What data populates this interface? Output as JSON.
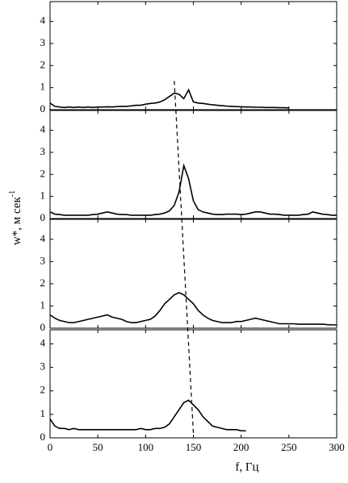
{
  "chart_data": {
    "type": "line",
    "x_label": "f, Гц",
    "y_label": "w*, м сек",
    "y_label_sup": "-1",
    "xlim": [
      0,
      300
    ],
    "xticks": [
      0,
      50,
      100,
      150,
      200,
      250,
      300
    ],
    "color": "#000000",
    "guide_line": {
      "x": [
        130,
        150
      ],
      "y": [
        1.3,
        0.2
      ]
    },
    "panels": [
      {
        "ylim": [
          0,
          4.9
        ],
        "yticks": [
          0,
          1,
          2,
          3,
          4
        ],
        "x": [
          0,
          5,
          10,
          15,
          20,
          25,
          30,
          35,
          40,
          45,
          50,
          55,
          60,
          65,
          70,
          75,
          80,
          85,
          90,
          95,
          100,
          105,
          110,
          115,
          120,
          125,
          130,
          135,
          140,
          145,
          150,
          155,
          160,
          165,
          170,
          175,
          180,
          185,
          190,
          195,
          200,
          205,
          210,
          215,
          220,
          225,
          230,
          235,
          240,
          245,
          250
        ],
        "values": [
          0.3,
          0.15,
          0.12,
          0.1,
          0.12,
          0.1,
          0.12,
          0.1,
          0.12,
          0.1,
          0.12,
          0.12,
          0.13,
          0.12,
          0.14,
          0.15,
          0.15,
          0.17,
          0.2,
          0.2,
          0.25,
          0.28,
          0.3,
          0.35,
          0.45,
          0.6,
          0.75,
          0.7,
          0.5,
          0.9,
          0.35,
          0.3,
          0.28,
          0.25,
          0.22,
          0.2,
          0.18,
          0.16,
          0.15,
          0.14,
          0.13,
          0.12,
          0.12,
          0.11,
          0.11,
          0.1,
          0.1,
          0.1,
          0.09,
          0.09,
          0.08
        ]
      },
      {
        "ylim": [
          0,
          4.9
        ],
        "yticks": [
          0,
          1,
          2,
          3,
          4
        ],
        "x": [
          0,
          5,
          10,
          15,
          20,
          25,
          30,
          35,
          40,
          45,
          50,
          55,
          60,
          65,
          70,
          75,
          80,
          85,
          90,
          95,
          100,
          105,
          110,
          115,
          120,
          125,
          130,
          135,
          140,
          145,
          150,
          155,
          160,
          165,
          170,
          175,
          180,
          185,
          190,
          195,
          200,
          205,
          210,
          215,
          220,
          225,
          230,
          235,
          240,
          245,
          250,
          255,
          260,
          265,
          270,
          275,
          280,
          285,
          290,
          295,
          300
        ],
        "values": [
          0.3,
          0.2,
          0.18,
          0.15,
          0.15,
          0.15,
          0.15,
          0.15,
          0.15,
          0.18,
          0.2,
          0.25,
          0.3,
          0.25,
          0.2,
          0.18,
          0.18,
          0.15,
          0.15,
          0.15,
          0.15,
          0.15,
          0.18,
          0.2,
          0.25,
          0.35,
          0.6,
          1.2,
          2.4,
          1.8,
          0.8,
          0.4,
          0.3,
          0.25,
          0.2,
          0.18,
          0.18,
          0.2,
          0.2,
          0.2,
          0.18,
          0.2,
          0.25,
          0.3,
          0.3,
          0.25,
          0.2,
          0.2,
          0.18,
          0.15,
          0.15,
          0.15,
          0.15,
          0.18,
          0.2,
          0.3,
          0.25,
          0.2,
          0.18,
          0.15,
          0.15
        ]
      },
      {
        "ylim": [
          0,
          4.9
        ],
        "yticks": [
          0,
          1,
          2,
          3,
          4
        ],
        "x": [
          0,
          5,
          10,
          15,
          20,
          25,
          30,
          35,
          40,
          45,
          50,
          55,
          60,
          65,
          70,
          75,
          80,
          85,
          90,
          95,
          100,
          105,
          110,
          115,
          120,
          125,
          130,
          135,
          140,
          145,
          150,
          155,
          160,
          165,
          170,
          175,
          180,
          185,
          190,
          195,
          200,
          205,
          210,
          215,
          220,
          225,
          230,
          235,
          240,
          245,
          250,
          255,
          260,
          265,
          270,
          275,
          280,
          285,
          290,
          295,
          300
        ],
        "values": [
          0.6,
          0.45,
          0.35,
          0.3,
          0.25,
          0.25,
          0.3,
          0.35,
          0.4,
          0.45,
          0.5,
          0.55,
          0.6,
          0.5,
          0.45,
          0.4,
          0.3,
          0.25,
          0.25,
          0.3,
          0.35,
          0.4,
          0.55,
          0.8,
          1.1,
          1.3,
          1.5,
          1.6,
          1.5,
          1.3,
          1.1,
          0.8,
          0.6,
          0.45,
          0.35,
          0.3,
          0.25,
          0.25,
          0.25,
          0.3,
          0.3,
          0.35,
          0.4,
          0.45,
          0.4,
          0.35,
          0.3,
          0.25,
          0.2,
          0.2,
          0.2,
          0.2,
          0.18,
          0.18,
          0.18,
          0.18,
          0.18,
          0.18,
          0.16,
          0.15,
          0.15
        ]
      },
      {
        "ylim": [
          0,
          4.6
        ],
        "yticks": [
          0,
          1,
          2,
          3,
          4
        ],
        "x": [
          0,
          5,
          10,
          15,
          20,
          25,
          30,
          35,
          40,
          45,
          50,
          55,
          60,
          65,
          70,
          75,
          80,
          85,
          90,
          95,
          100,
          105,
          110,
          115,
          120,
          125,
          130,
          135,
          140,
          145,
          150,
          155,
          160,
          165,
          170,
          175,
          180,
          185,
          190,
          195,
          200,
          205
        ],
        "values": [
          0.8,
          0.5,
          0.4,
          0.4,
          0.35,
          0.4,
          0.35,
          0.35,
          0.35,
          0.35,
          0.35,
          0.35,
          0.35,
          0.35,
          0.35,
          0.35,
          0.35,
          0.35,
          0.35,
          0.4,
          0.35,
          0.35,
          0.4,
          0.4,
          0.45,
          0.6,
          0.9,
          1.2,
          1.5,
          1.6,
          1.4,
          1.2,
          0.9,
          0.7,
          0.5,
          0.45,
          0.4,
          0.35,
          0.35,
          0.35,
          0.3,
          0.3
        ]
      }
    ]
  }
}
